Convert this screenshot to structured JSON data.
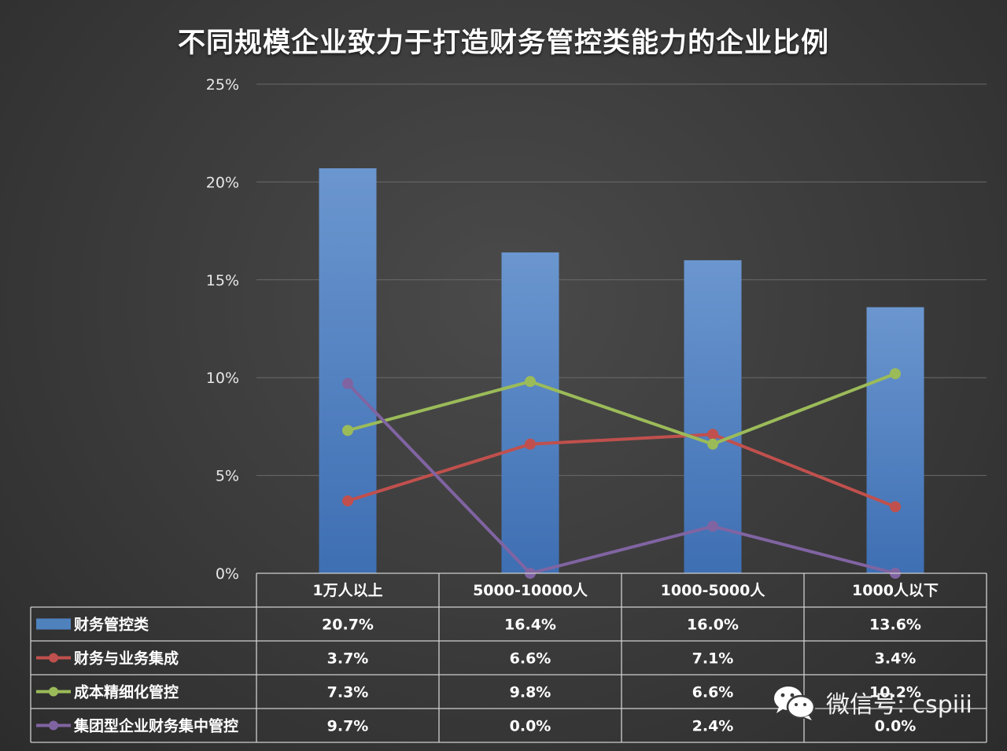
{
  "chart_data": {
    "type": "bar",
    "title": "不同规模企业致力于打造财务管控类能力的企业比例",
    "categories": [
      "1万人以上",
      "5000-10000人",
      "1000-5000人",
      "1000人以下"
    ],
    "ylim": [
      0,
      25
    ],
    "yticks": [
      "0%",
      "5%",
      "10%",
      "15%",
      "20%",
      "25%"
    ],
    "ytick_values": [
      0,
      5,
      10,
      15,
      20,
      25
    ],
    "grid": true,
    "legend": "data-table",
    "series": [
      {
        "name": "财务管控类",
        "kind": "bar",
        "color": "#4f81bd",
        "values": [
          20.7,
          16.4,
          16.0,
          13.6
        ],
        "labels": [
          "20.7%",
          "16.4%",
          "16.0%",
          "13.6%"
        ]
      },
      {
        "name": "财务与业务集成",
        "kind": "line",
        "color": "#c0504d",
        "values": [
          3.7,
          6.6,
          7.1,
          3.4
        ],
        "labels": [
          "3.7%",
          "6.6%",
          "7.1%",
          "3.4%"
        ]
      },
      {
        "name": "成本精细化管控",
        "kind": "line",
        "color": "#9bbb59",
        "values": [
          7.3,
          9.8,
          6.6,
          10.2
        ],
        "labels": [
          "7.3%",
          "9.8%",
          "6.6%",
          "10.2%"
        ]
      },
      {
        "name": "集团型企业财务集中管控",
        "kind": "line",
        "color": "#8064a2",
        "values": [
          9.7,
          0.0,
          2.4,
          0.0
        ],
        "labels": [
          "9.7%",
          "0.0%",
          "2.4%",
          "0.0%"
        ]
      }
    ]
  },
  "watermark": {
    "text": "微信号: cspiii",
    "icon": "wechat-icon"
  }
}
